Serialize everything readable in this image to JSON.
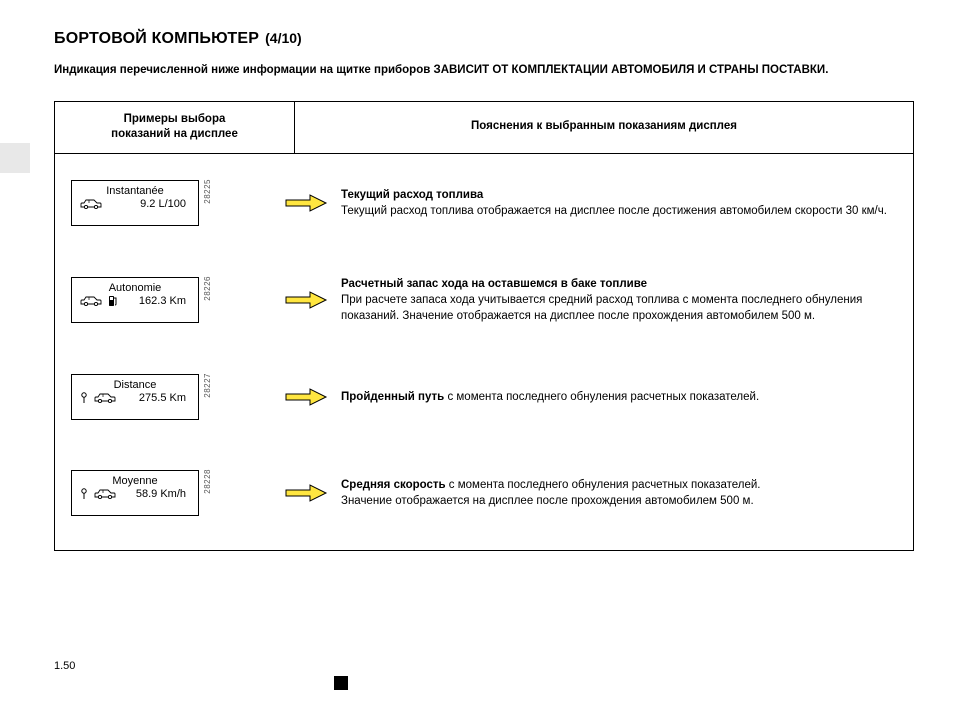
{
  "title": "БОРТОВОЙ КОМПЬЮТЕР",
  "title_page": "(4/10)",
  "subtitle_lead": "Индикация перечисленной ниже информации на щитке приборов ",
  "subtitle_bold": "ЗАВИСИТ ОТ КОМПЛЕКТАЦИИ АВТОМОБИЛЯ И СТРАНЫ ПОСТАВКИ.",
  "header_left_l1": "Примеры выбора",
  "header_left_l2": "показаний на дисплее",
  "header_right": "Пояснения к выбранным показаниям дисплея",
  "rows": [
    {
      "label": "Instantanée",
      "value": "9.2 L/100",
      "fig": "28225",
      "icons": [
        "car"
      ],
      "desc_bold": "Текущий расход топлива",
      "desc_rest_1": "Текущий расход топлива отображается на дисплее после достижения автомобилем скорости 30 км/ч."
    },
    {
      "label": "Autonomie",
      "value": "162.3 Km",
      "fig": "28226",
      "icons": [
        "car",
        "pump"
      ],
      "desc_bold": "Расчетный запас хода на оставшемся в баке топливе",
      "desc_rest_1": "При расчете запаса хода учитывается средний расход топлива с момента последнего обнуления показаний. Значение отображается на дисплее после прохождения автомобилем 500 м."
    },
    {
      "label": "Distance",
      "value": "275.5 Km",
      "fig": "28227",
      "icons": [
        "pin",
        "car"
      ],
      "desc_bold": "Пройденный путь",
      "desc_inline": " с момента последнего обнуления расчетных показателей."
    },
    {
      "label": "Moyenne",
      "value": "58.9 Km/h",
      "fig": "28228",
      "icons": [
        "pin",
        "car"
      ],
      "desc_bold": "Средняя скорость",
      "desc_inline": " с момента последнего обнуления расчетных показателей.",
      "desc_rest_1": "Значение отображается на дисплее после прохождения автомобилем 500 м."
    }
  ],
  "pagenum": "1.50",
  "arrow": {
    "fill": "#ffe640",
    "stroke": "#000000"
  }
}
